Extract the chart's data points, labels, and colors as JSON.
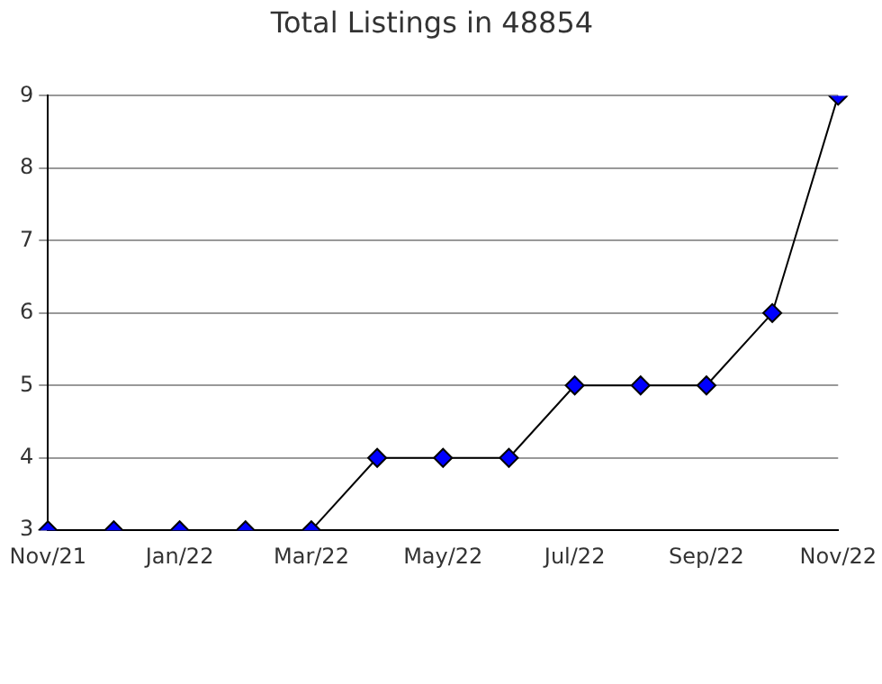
{
  "chart_data": {
    "type": "line",
    "title": "Total Listings in 48854",
    "categories": [
      "Nov/21",
      null,
      "Jan/22",
      null,
      "Mar/22",
      null,
      "May/22",
      null,
      "Jul/22",
      null,
      "Sep/22",
      null,
      "Nov/22"
    ],
    "series": [
      {
        "color": "#0000ff",
        "values": [
          3,
          3,
          3,
          3,
          3,
          4,
          4,
          4,
          5,
          5,
          5,
          6,
          9
        ]
      }
    ],
    "ylim": [
      3,
      9
    ],
    "yticks": [
      3,
      4,
      5,
      6,
      7,
      8,
      9
    ],
    "grid": "y",
    "legend": false,
    "marker": "diamond",
    "line_style": "solid"
  }
}
